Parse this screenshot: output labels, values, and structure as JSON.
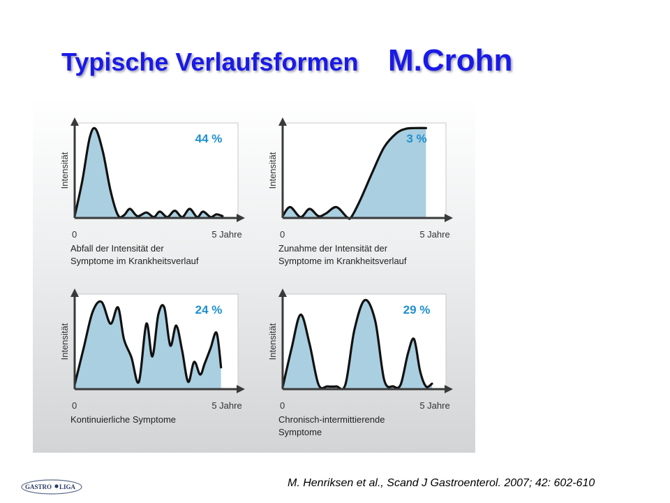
{
  "title": {
    "part1": "Typische Verlaufsformen",
    "part2": "M.Crohn"
  },
  "chart_data": [
    {
      "type": "area",
      "title": "44 %",
      "ylabel": "Intensität",
      "x_tick_labels": [
        "0",
        "5 Jahre"
      ],
      "caption": [
        "Abfall der Intensität der",
        "Symptome im Krankheitsverlauf"
      ],
      "xlim": [
        0,
        5
      ],
      "ylim": [
        0,
        1
      ],
      "x": [
        0,
        0.25,
        0.5,
        0.7,
        0.95,
        1.2,
        1.45,
        1.65,
        1.85,
        2.1,
        2.4,
        2.65,
        2.85,
        3.1,
        3.35,
        3.6,
        3.85,
        4.1,
        4.3,
        4.55,
        4.75,
        4.95
      ],
      "y": [
        0.02,
        0.4,
        0.88,
        0.98,
        0.72,
        0.3,
        0.03,
        0.03,
        0.1,
        0.02,
        0.06,
        0.01,
        0.07,
        0.01,
        0.08,
        0.01,
        0.1,
        0.01,
        0.07,
        0.01,
        0.04,
        0.02
      ]
    },
    {
      "type": "area",
      "title": "3 %",
      "ylabel": "Intensität",
      "x_tick_labels": [
        "0",
        "5 Jahre"
      ],
      "caption": [
        "Zunahme der Intensität der",
        "Symptome im Krankheitsverlauf"
      ],
      "xlim": [
        0,
        5
      ],
      "ylim": [
        0,
        1
      ],
      "x": [
        0,
        0.25,
        0.6,
        0.9,
        1.2,
        1.45,
        1.8,
        2.15,
        2.3,
        2.6,
        3.0,
        3.4,
        3.8,
        4.1,
        4.4,
        4.8
      ],
      "y": [
        0.02,
        0.12,
        0.01,
        0.1,
        0.02,
        0.05,
        0.12,
        0.01,
        0.01,
        0.2,
        0.5,
        0.78,
        0.93,
        0.98,
        0.99,
        0.99
      ]
    },
    {
      "type": "area",
      "title": "24 %",
      "ylabel": "Intensität",
      "x_tick_labels": [
        "0",
        "5 Jahre"
      ],
      "caption": [
        "Kontinuierliche Symptome"
      ],
      "xlim": [
        0,
        5
      ],
      "ylim": [
        0,
        1
      ],
      "x": [
        0,
        0.3,
        0.6,
        0.9,
        1.2,
        1.45,
        1.65,
        1.9,
        2.15,
        2.4,
        2.6,
        2.8,
        3.0,
        3.2,
        3.4,
        3.6,
        3.8,
        4.0,
        4.2,
        4.35,
        4.55,
        4.75,
        4.9
      ],
      "y": [
        0.05,
        0.45,
        0.85,
        0.96,
        0.72,
        0.9,
        0.55,
        0.35,
        0.08,
        0.72,
        0.36,
        0.82,
        0.9,
        0.48,
        0.7,
        0.42,
        0.08,
        0.3,
        0.16,
        0.28,
        0.45,
        0.62,
        0.24
      ]
    },
    {
      "type": "area",
      "title": "29 %",
      "ylabel": "Intensität",
      "x_tick_labels": [
        "0",
        "5 Jahre"
      ],
      "caption": [
        "Chronisch-intermittierende",
        "Symptome"
      ],
      "xlim": [
        0,
        5
      ],
      "ylim": [
        0,
        1
      ],
      "x": [
        0,
        0.3,
        0.6,
        0.9,
        1.2,
        1.5,
        1.8,
        2.1,
        2.4,
        2.75,
        3.1,
        3.4,
        3.7,
        3.95,
        4.2,
        4.4,
        4.6,
        4.8,
        5.0
      ],
      "y": [
        0.02,
        0.45,
        0.82,
        0.5,
        0.05,
        0.03,
        0.03,
        0.05,
        0.65,
        0.98,
        0.75,
        0.1,
        0.03,
        0.05,
        0.4,
        0.55,
        0.2,
        0.03,
        0.06
      ]
    }
  ],
  "citation": "M. Henriksen et al., Scand J Gastroenterol. 2007; 42: 602-610",
  "logo_text": "GASTRO LIGA",
  "colors": {
    "title": "#1a1ae6",
    "fill": "#a9cfe0",
    "percent": "#1f8fcf",
    "line": "#111111"
  }
}
